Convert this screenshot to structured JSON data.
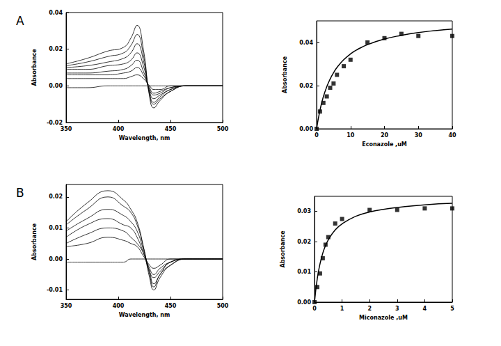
{
  "chart_data": [
    {
      "type": "line",
      "title": "A",
      "xlabel": "Wavelength, nm",
      "ylabel": "Absorbance",
      "color": "#000000",
      "grid": false,
      "xlim": [
        350,
        500
      ],
      "xticks": [
        350,
        400,
        450,
        500
      ],
      "ylim": [
        -0.02,
        0.04
      ],
      "yticks": [
        {
          "value": -0.02,
          "label": "-0.02"
        },
        {
          "value": 0,
          "label": "0.00"
        },
        {
          "value": 0.02,
          "label": "0.02"
        },
        {
          "value": 0.04,
          "label": "0.04"
        }
      ],
      "x": [
        350,
        370,
        390,
        405,
        412,
        418,
        424,
        430,
        434,
        440,
        450,
        465,
        480,
        500
      ],
      "series": [
        {
          "values": [
            0.012,
            0.015,
            0.019,
            0.021,
            0.026,
            0.033,
            0.02,
            -0.006,
            -0.012,
            -0.008,
            -0.003,
            0,
            0,
            0
          ]
        },
        {
          "values": [
            0.011,
            0.013,
            0.016,
            0.018,
            0.022,
            0.028,
            0.017,
            -0.005,
            -0.01,
            -0.007,
            -0.003,
            0,
            0,
            0
          ]
        },
        {
          "values": [
            0.01,
            0.011,
            0.013,
            0.015,
            0.018,
            0.023,
            0.014,
            -0.004,
            -0.009,
            -0.006,
            -0.002,
            0,
            0,
            0
          ]
        },
        {
          "values": [
            0.009,
            0.009,
            0.011,
            0.012,
            0.014,
            0.018,
            0.011,
            -0.003,
            -0.007,
            -0.005,
            -0.002,
            0,
            0,
            0
          ]
        },
        {
          "values": [
            0.007,
            0.007,
            0.008,
            0.009,
            0.011,
            0.014,
            0.008,
            -0.002,
            -0.005,
            -0.004,
            -0.001,
            0,
            0,
            0
          ]
        },
        {
          "values": [
            0.006,
            0.006,
            0.006,
            0.007,
            0.008,
            0.01,
            0.006,
            -0.001,
            -0.004,
            -0.003,
            -0.001,
            0,
            0,
            0
          ]
        },
        {
          "values": [
            0.004,
            0.004,
            0.004,
            0.004,
            0.005,
            0.006,
            0.004,
            0,
            -0.002,
            -0.002,
            0,
            0,
            0,
            0
          ]
        },
        {
          "values": [
            -0.001,
            -0.001,
            0,
            0,
            0,
            0,
            0,
            0,
            0,
            0,
            0,
            0,
            0,
            0
          ]
        }
      ]
    },
    {
      "type": "scatter",
      "xlabel": "Econazole ,uM",
      "ylabel": "Absorbance",
      "grid": false,
      "xlim": [
        0,
        40
      ],
      "xticks": [
        0,
        10,
        20,
        30,
        40
      ],
      "ylim": [
        0,
        0.05
      ],
      "yticks": [
        {
          "value": 0,
          "label": "0.00"
        },
        {
          "value": 0.02,
          "label": "0.02"
        },
        {
          "value": 0.04,
          "label": "0.04"
        }
      ],
      "series": [
        {
          "type": "scatter",
          "marker": "square",
          "color": "#000000",
          "x": [
            0,
            1,
            2,
            3,
            4,
            5,
            6,
            8,
            10,
            15,
            20,
            25,
            30,
            40
          ],
          "values": [
            0,
            0.008,
            0.012,
            0.015,
            0.019,
            0.021,
            0.025,
            0.029,
            0.032,
            0.04,
            0.042,
            0.044,
            0.043,
            0.043
          ]
        },
        {
          "type": "line",
          "color": "#000000",
          "x": [
            0,
            1,
            2,
            3,
            4,
            5,
            6,
            8,
            10,
            12,
            15,
            20,
            25,
            30,
            35,
            40
          ],
          "values": [
            0,
            0.0087,
            0.0149,
            0.0195,
            0.0231,
            0.026,
            0.0284,
            0.032,
            0.0347,
            0.0367,
            0.039,
            0.0416,
            0.0433,
            0.0446,
            0.0455,
            0.0462
          ]
        }
      ]
    },
    {
      "type": "line",
      "title": "B",
      "xlabel": "Wavelength, nm",
      "ylabel": "Absorbance",
      "color": "#000000",
      "grid": false,
      "xlim": [
        350,
        500
      ],
      "xticks": [
        350,
        400,
        450,
        500
      ],
      "ylim": [
        -0.013,
        0.024
      ],
      "yticks": [
        {
          "value": -0.01,
          "label": "-0.01"
        },
        {
          "value": 0,
          "label": "0.00"
        },
        {
          "value": 0.01,
          "label": "0.01"
        },
        {
          "value": 0.02,
          "label": "0.02"
        }
      ],
      "x": [
        350,
        370,
        390,
        405,
        412,
        418,
        424,
        430,
        434,
        440,
        450,
        465,
        480,
        500
      ],
      "series": [
        {
          "values": [
            0.012,
            0.018,
            0.022,
            0.019,
            0.016,
            0.012,
            0.004,
            -0.006,
            -0.01,
            -0.006,
            -0.002,
            0,
            0,
            0
          ]
        },
        {
          "values": [
            0.011,
            0.016,
            0.02,
            0.017,
            0.015,
            0.011,
            0.004,
            -0.005,
            -0.009,
            -0.005,
            -0.002,
            0,
            0,
            0
          ]
        },
        {
          "values": [
            0.009,
            0.013,
            0.016,
            0.014,
            0.012,
            0.009,
            0.003,
            -0.004,
            -0.008,
            -0.005,
            -0.001,
            0,
            0,
            0
          ]
        },
        {
          "values": [
            0.007,
            0.011,
            0.013,
            0.011,
            0.01,
            0.007,
            0.002,
            -0.004,
            -0.006,
            -0.004,
            -0.001,
            0,
            0,
            0
          ]
        },
        {
          "values": [
            0.005,
            0.008,
            0.01,
            0.009,
            0.007,
            0.005,
            0.002,
            -0.003,
            -0.005,
            -0.003,
            -0.001,
            0,
            0,
            0
          ]
        },
        {
          "values": [
            0.004,
            0.005,
            0.007,
            0.006,
            0.005,
            0.004,
            0.001,
            -0.002,
            -0.003,
            -0.002,
            0,
            0,
            0,
            0
          ]
        },
        {
          "values": [
            -0.001,
            -0.001,
            -0.001,
            -0.001,
            0,
            0,
            0,
            0,
            0,
            0,
            0,
            0,
            0,
            0
          ]
        }
      ]
    },
    {
      "type": "scatter",
      "xlabel": "Miconazole ,uM",
      "ylabel": "Absorbance",
      "grid": false,
      "xlim": [
        0,
        5
      ],
      "xticks": [
        0,
        1,
        2,
        3,
        4,
        5
      ],
      "ylim": [
        0,
        0.035
      ],
      "yticks": [
        {
          "value": 0,
          "label": "0.00"
        },
        {
          "value": 0.01,
          "label": "0.01"
        },
        {
          "value": 0.02,
          "label": "0.02"
        },
        {
          "value": 0.03,
          "label": "0.03"
        }
      ],
      "series": [
        {
          "type": "scatter",
          "marker": "square",
          "color": "#000000",
          "x": [
            0,
            0.1,
            0.2,
            0.3,
            0.4,
            0.5,
            0.75,
            1,
            2,
            3,
            4,
            5
          ],
          "values": [
            0,
            0.005,
            0.0095,
            0.0145,
            0.019,
            0.0215,
            0.026,
            0.0275,
            0.0305,
            0.0305,
            0.031,
            0.031
          ]
        },
        {
          "type": "line",
          "color": "#000000",
          "x": [
            0,
            0.1,
            0.2,
            0.3,
            0.4,
            0.5,
            0.75,
            1,
            1.5,
            2,
            2.5,
            3,
            4,
            5
          ],
          "values": [
            0,
            0.0078,
            0.0127,
            0.0162,
            0.0187,
            0.0206,
            0.0239,
            0.0259,
            0.0284,
            0.0298,
            0.0307,
            0.0313,
            0.0322,
            0.0327
          ]
        }
      ]
    }
  ]
}
